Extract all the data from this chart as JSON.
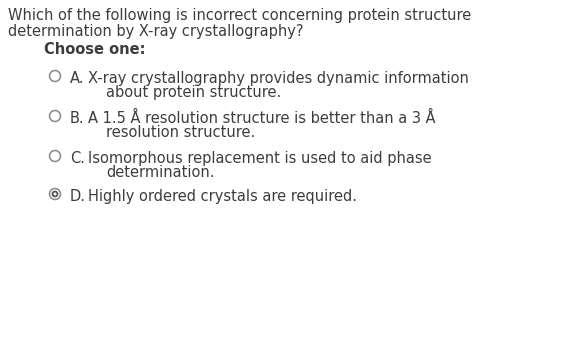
{
  "background_color": "#ffffff",
  "question_line1": "Which of the following is incorrect concerning protein structure",
  "question_line2": "determination by X-ray crystallography?",
  "choose_one_text": "Choose one:",
  "options": [
    {
      "label": "A.",
      "line1": "X-ray crystallography provides dynamic information",
      "line2": "about protein structure.",
      "selected": false
    },
    {
      "label": "B.",
      "line1": "A 1.5 Å resolution structure is better than a 3 Å",
      "line2": "resolution structure.",
      "selected": false
    },
    {
      "label": "C.",
      "line1": "Isomorphous replacement is used to aid phase",
      "line2": "determination.",
      "selected": false
    },
    {
      "label": "D.",
      "line1": "Highly ordered crystals are required.",
      "line2": "",
      "selected": true
    }
  ],
  "text_color": "#3d3d3d",
  "circle_edge_color": "#888888",
  "selected_inner_color": "#555555",
  "question_fontsize": 10.5,
  "choose_fontsize": 10.5,
  "option_fontsize": 10.5,
  "figwidth": 5.88,
  "figheight": 3.37,
  "dpi": 100
}
